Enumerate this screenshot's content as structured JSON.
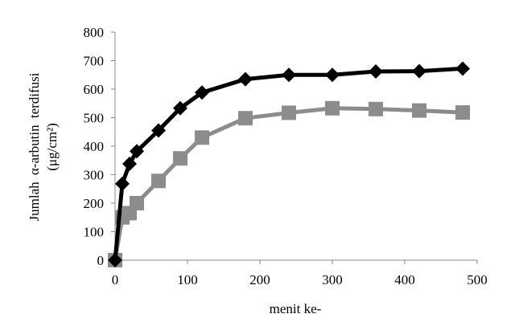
{
  "chart_data": {
    "type": "line",
    "xlabel": "menit ke-",
    "ylabel_line1": "Jumlah α-arbutin terdifusi",
    "ylabel_line2": "(μg/cm²)",
    "xlim": [
      0,
      500
    ],
    "ylim": [
      0,
      800
    ],
    "xticks": [
      0,
      100,
      200,
      300,
      400,
      500
    ],
    "yticks": [
      0,
      100,
      200,
      300,
      400,
      500,
      600,
      700,
      800
    ],
    "grid": false,
    "legend": "none",
    "series": [
      {
        "marker": "diamond",
        "color": "#000000",
        "x": [
          0,
          10,
          20,
          30,
          60,
          90,
          120,
          180,
          240,
          300,
          360,
          420,
          480
        ],
        "y": [
          0,
          268,
          338,
          382,
          455,
          533,
          588,
          635,
          650,
          650,
          662,
          663,
          672
        ]
      },
      {
        "marker": "square",
        "color": "#8c8c8c",
        "x": [
          0,
          10,
          20,
          30,
          60,
          90,
          120,
          180,
          240,
          300,
          360,
          420,
          480
        ],
        "y": [
          0,
          150,
          165,
          200,
          278,
          357,
          430,
          498,
          517,
          533,
          530,
          525,
          518
        ]
      }
    ]
  }
}
